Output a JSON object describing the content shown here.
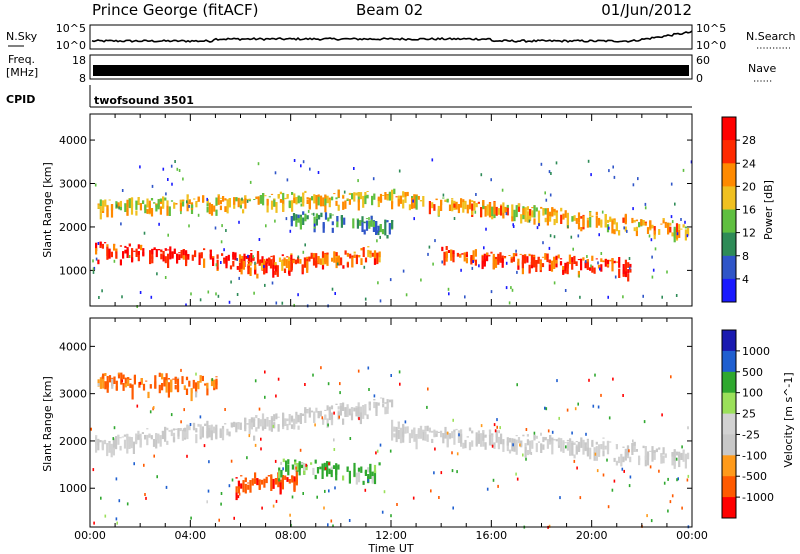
{
  "header": {
    "station": "Prince George (fitACF)",
    "beam": "Beam 02",
    "date": "01/Jun/2012"
  },
  "top_panels": {
    "nsky": {
      "label": "N.Sky",
      "ticks": [
        "10^5",
        "10^0"
      ],
      "right_label": "N.Search",
      "right_ticks": [
        "10^5",
        "10^0"
      ]
    },
    "freq": {
      "label_line1": "Freq.",
      "label_line2": "[MHz]",
      "ticks": [
        "18",
        "8"
      ],
      "right_label": "Nave",
      "right_ticks": [
        "60",
        "0"
      ]
    },
    "cpid": {
      "label": "CPID",
      "value": "twofsound 3501"
    }
  },
  "x_axis": {
    "label": "Time UT",
    "ticks": [
      "00:00",
      "04:00",
      "08:00",
      "12:00",
      "16:00",
      "20:00",
      "00:00"
    ]
  },
  "colors": {
    "power": [
      "#1a1aff",
      "#2f55c8",
      "#2e8b57",
      "#5fbf40",
      "#f0c020",
      "#ff8a00",
      "#ff2a00",
      "#ff0000"
    ],
    "velocity": [
      "#ff0000",
      "#ff5a00",
      "#ff9a1a",
      "#c8c8c8",
      "#d2d2d2",
      "#9be05a",
      "#2fa82f",
      "#1f5fd0",
      "#1a1ab0"
    ]
  },
  "chart_data": [
    {
      "type": "heatmap",
      "title": "",
      "ylabel": "Slant Range [km]",
      "xlabel": "",
      "x_range_hours": [
        0,
        24
      ],
      "ylim": [
        180,
        4600
      ],
      "y_ticks": [
        1000,
        2000,
        3000,
        4000
      ],
      "colorbar": {
        "label": "Power [dB]",
        "ticks": [
          "28",
          "24",
          "20",
          "16",
          "12",
          "8",
          "4"
        ],
        "range": [
          0,
          32
        ]
      },
      "bands": [
        {
          "from_h": 0.2,
          "to_h": 8.0,
          "range_start": [
            1550,
            1300
          ],
          "range_end": [
            1300,
            900
          ],
          "power": 28
        },
        {
          "from_h": 6.0,
          "to_h": 11.5,
          "range_start": [
            900,
            1100
          ],
          "range_end": [
            1100,
            1500
          ],
          "power": 24
        },
        {
          "from_h": 0.3,
          "to_h": 12.0,
          "range_start": [
            2200,
            2600
          ],
          "range_end": [
            2100,
            3100
          ],
          "power": 18
        },
        {
          "from_h": 12.0,
          "to_h": 23.8,
          "range_start": [
            3000,
            2200
          ],
          "range_end": [
            2400,
            1300
          ],
          "power": 20
        },
        {
          "from_h": 14.0,
          "to_h": 21.5,
          "range_start": [
            1700,
            900
          ],
          "range_end": [
            1500,
            500
          ],
          "power": 26
        },
        {
          "from_h": 8.0,
          "to_h": 12.0,
          "range_start": [
            1800,
            2500
          ],
          "range_end": [
            1600,
            2300
          ],
          "power": 10
        }
      ]
    },
    {
      "type": "heatmap",
      "title": "",
      "ylabel": "Slant Range [km]",
      "xlabel": "Time UT",
      "x_range_hours": [
        0,
        24
      ],
      "ylim": [
        180,
        4600
      ],
      "y_ticks": [
        1000,
        2000,
        3000,
        4000
      ],
      "colorbar": {
        "label": "Velocity [m s^-1]",
        "ticks": [
          "1000",
          "500",
          "100",
          "25",
          "-25",
          "-100",
          "-500",
          "-1000"
        ],
        "range": [
          -1000,
          1000
        ]
      },
      "bands": [
        {
          "from_h": 0.2,
          "to_h": 12.0,
          "range_start": [
            2400,
            1300
          ],
          "range_end": [
            2300,
            3100
          ],
          "velocity": 0
        },
        {
          "from_h": 12.0,
          "to_h": 23.8,
          "range_start": [
            3000,
            1300
          ],
          "range_end": [
            2300,
            900
          ],
          "velocity": 0
        },
        {
          "from_h": 5.8,
          "to_h": 8.2,
          "range_start": [
            1300,
            700
          ],
          "range_end": [
            1400,
            800
          ],
          "velocity": -400
        },
        {
          "from_h": 7.5,
          "to_h": 11.5,
          "range_start": [
            1200,
            1600
          ],
          "range_end": [
            1100,
            1400
          ],
          "velocity": 150
        },
        {
          "from_h": 0.3,
          "to_h": 5.0,
          "range_start": [
            3400,
            3000
          ],
          "range_end": [
            3300,
            2900
          ],
          "velocity": -150
        }
      ]
    }
  ]
}
